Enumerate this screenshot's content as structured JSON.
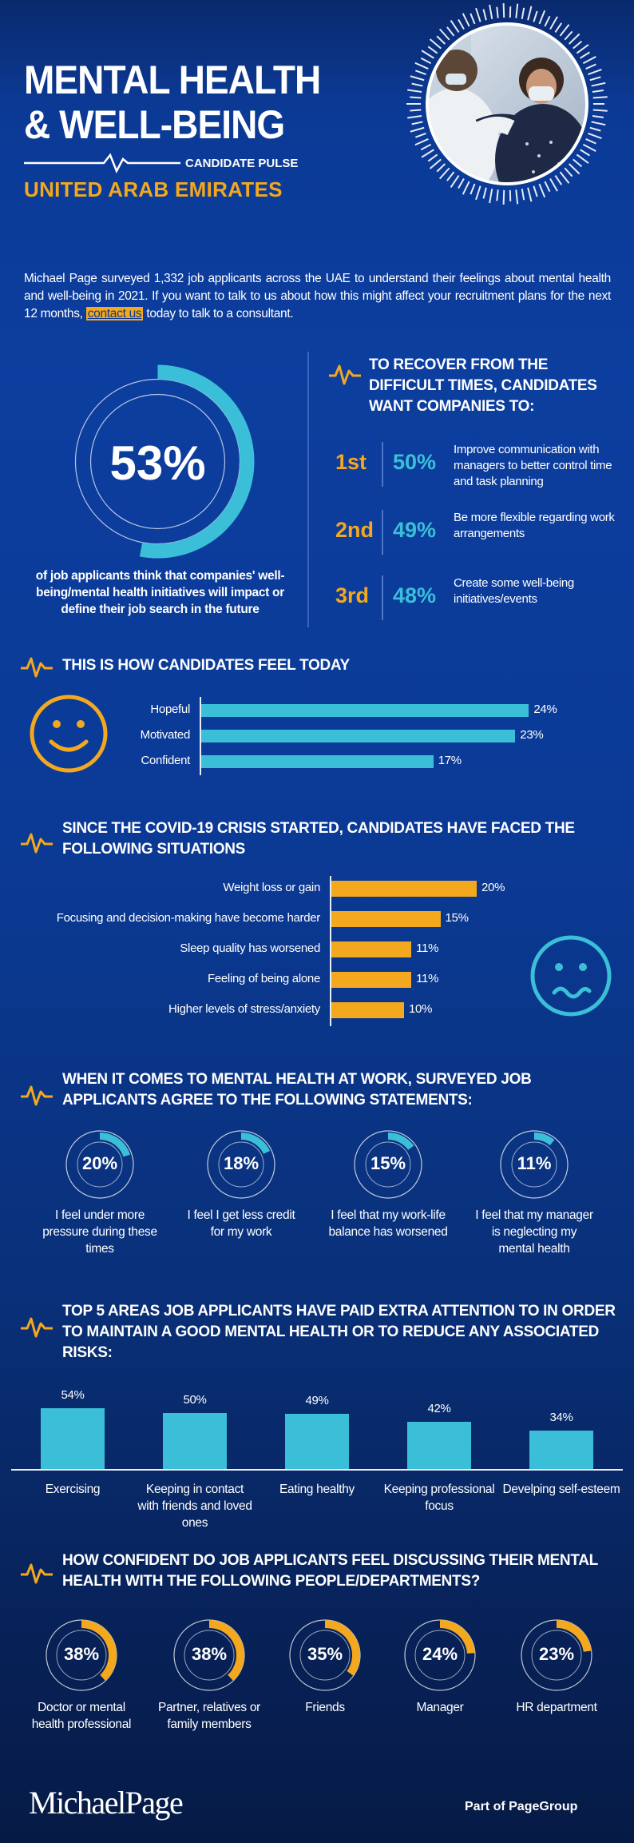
{
  "header": {
    "title_line1": "MENTAL HEALTH",
    "title_line2": "& WELL-BEING",
    "subtitle": "CANDIDATE PULSE",
    "country": "UNITED ARAB EMIRATES"
  },
  "intro": {
    "text_before": "Michael Page surveyed 1,332 job applicants across the UAE to understand their feelings about mental health and well-being in 2021. If you want to talk to us about how this might affect your recruitment plans for the next 12 months, ",
    "link": "contact us",
    "text_after": " today to talk to a consultant."
  },
  "stat_main": {
    "percent": "53%",
    "value": 0.53,
    "label": "of job applicants think that companies' well-being/mental health initiatives will impact or define their job search in the future"
  },
  "recover": {
    "heading": "TO RECOVER FROM THE DIFFICULT TIMES, CANDIDATES WANT COMPANIES TO:",
    "items": [
      {
        "rank": "1st",
        "pct": "50%",
        "text": "Improve communication with managers to better control time and task planning"
      },
      {
        "rank": "2nd",
        "pct": "49%",
        "text": "Be more flexible regarding work arrangements"
      },
      {
        "rank": "3rd",
        "pct": "48%",
        "text": "Create some well-being initiatives/events"
      }
    ]
  },
  "feel_today": {
    "heading": "THIS IS HOW CANDIDATES FEEL TODAY",
    "chart_data": {
      "type": "bar",
      "categories": [
        "Hopeful",
        "Motivated",
        "Confident"
      ],
      "values": [
        24,
        23,
        17
      ],
      "labels": [
        "24%",
        "23%",
        "17%"
      ],
      "color": "#3bbfd8"
    }
  },
  "covid": {
    "heading": "SINCE THE COVID-19 CRISIS STARTED, CANDIDATES HAVE FACED THE FOLLOWING SITUATIONS",
    "chart_data": {
      "type": "bar",
      "categories": [
        "Weight loss or gain",
        "Focusing and decision-making have become harder",
        "Sleep quality has worsened",
        "Feeling of being alone",
        "Higher levels of stress/anxiety"
      ],
      "values": [
        20,
        15,
        11,
        11,
        10
      ],
      "labels": [
        "20%",
        "15%",
        "11%",
        "11%",
        "10%"
      ],
      "color": "#f4a81d"
    }
  },
  "work": {
    "heading": "WHEN IT COMES TO MENTAL HEALTH AT WORK, SURVEYED JOB APPLICANTS AGREE TO THE FOLLOWING STATEMENTS:",
    "items": [
      {
        "pct": "20%",
        "value": 0.2,
        "label": "I feel under more pressure during these times"
      },
      {
        "pct": "18%",
        "value": 0.18,
        "label": "I feel I get less credit for my work"
      },
      {
        "pct": "15%",
        "value": 0.15,
        "label": "I feel that my work-life balance has worsened"
      },
      {
        "pct": "11%",
        "value": 0.11,
        "label": "I feel that my manager is neglecting my mental health"
      }
    ]
  },
  "areas": {
    "heading": "TOP 5 AREAS JOB APPLICANTS HAVE PAID EXTRA ATTENTION TO IN ORDER TO MAINTAIN A GOOD MENTAL HEALTH OR TO REDUCE ANY ASSOCIATED RISKS:",
    "chart_data": {
      "type": "bar",
      "categories": [
        "Exercising",
        "Keeping in contact with friends and loved ones",
        "Eating healthy",
        "Keeping professional focus",
        "Develping self-esteem"
      ],
      "values": [
        54,
        50,
        49,
        42,
        34
      ],
      "labels": [
        "54%",
        "50%",
        "49%",
        "42%",
        "34%"
      ],
      "color": "#3bbfd8"
    }
  },
  "confident": {
    "heading": "HOW CONFIDENT DO JOB APPLICANTS FEEL DISCUSSING THEIR MENTAL HEALTH WITH THE FOLLOWING PEOPLE/DEPARTMENTS?",
    "items": [
      {
        "pct": "38%",
        "value": 0.38,
        "label": "Doctor or mental health professional"
      },
      {
        "pct": "38%",
        "value": 0.38,
        "label": "Partner, relatives or family members"
      },
      {
        "pct": "35%",
        "value": 0.35,
        "label": "Friends"
      },
      {
        "pct": "24%",
        "value": 0.24,
        "label": "Manager"
      },
      {
        "pct": "23%",
        "value": 0.23,
        "label": "HR department"
      }
    ]
  },
  "footer": {
    "logo": "MichaelPage",
    "part_of": "Part of ",
    "group": "PageGroup"
  },
  "colors": {
    "accent_orange": "#f4a81d",
    "accent_cyan": "#3bbfd8",
    "background": "#0b3a96"
  }
}
